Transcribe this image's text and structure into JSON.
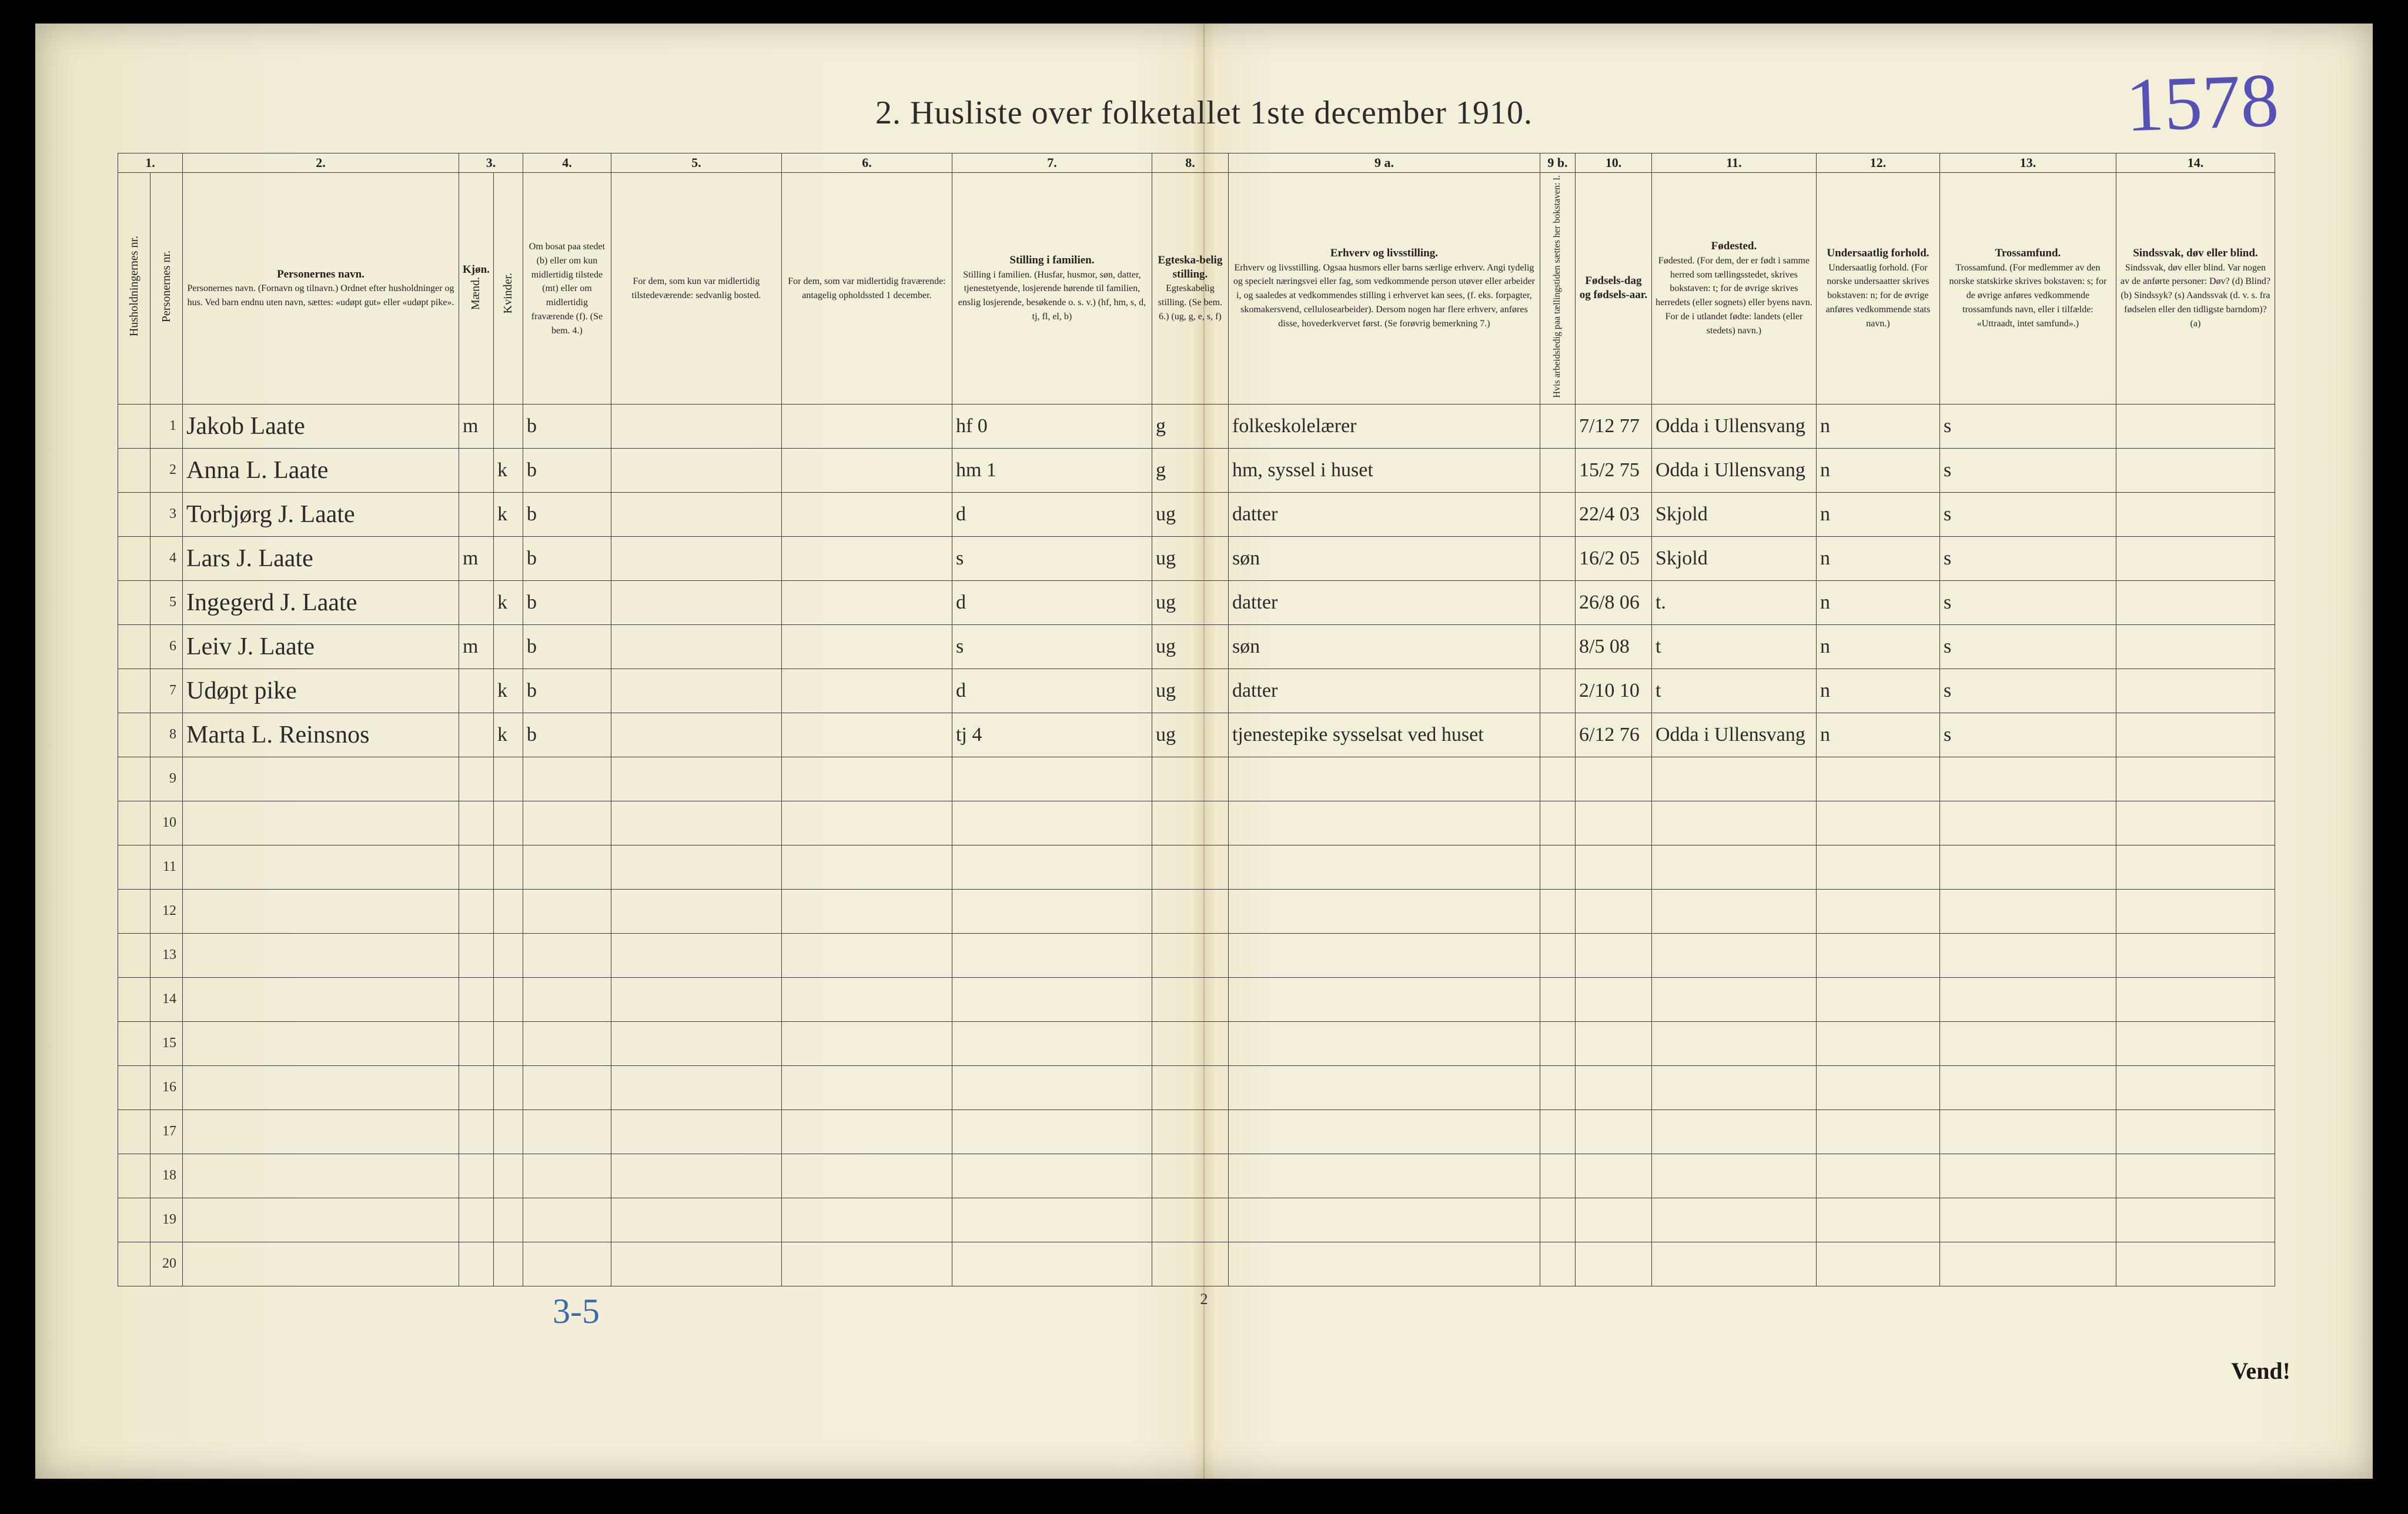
{
  "title": "2.  Husliste over folketallet 1ste december 1910.",
  "handwritten_page_number": "1578",
  "footer_handnote": "3-5",
  "page_footnum": "2",
  "vend": "Vend!",
  "colors": {
    "paper": "#f3eed8",
    "ink": "#2b2b2b",
    "handwriting": "#2a2a2a",
    "blue_pencil": "#3a6aa8",
    "purple_ink": "#3a37b0",
    "rule": "#3a3a3a"
  },
  "column_numbers": [
    "1.",
    "",
    "2.",
    "3.",
    "",
    "4.",
    "5.",
    "6.",
    "7.",
    "8.",
    "9 a.",
    "9 b.",
    "10.",
    "11.",
    "12.",
    "13.",
    "14."
  ],
  "headers": {
    "c1": "Husholdningernes nr.",
    "c1b": "Personernes nr.",
    "c2": "Personernes navn.\n(Fornavn og tilnavn.)\nOrdnet efter husholdninger og hus.\nVed barn endnu uten navn, sættes: «udøpt gut» eller «udøpt pike».",
    "c3": "Kjøn.",
    "c3a": "Mænd.",
    "c3b": "Kvinder.",
    "c4": "Om bosat paa stedet (b) eller om kun midlertidig tilstede (mt) eller om midlertidig fraværende (f).\n(Se bem. 4.)",
    "c5": "For dem, som kun var midlertidig tilstedeværende:\nsedvanlig bosted.",
    "c6": "For dem, som var midlertidig fraværende:\nantagelig opholdssted 1 december.",
    "c7": "Stilling i familien.\n(Husfar, husmor, søn, datter, tjenestetyende, losjerende hørende til familien, enslig losjerende, besøkende o. s. v.)\n(hf, hm, s, d, tj, fl, el, b)",
    "c8": "Egteskabelig stilling.\n(Se bem. 6.)\n(ug, g, e, s, f)",
    "c9a": "Erhverv og livsstilling.\nOgsaa husmors eller barns særlige erhverv.\nAngi tydelig og specielt næringsvei eller fag, som vedkommende person utøver eller arbeider i, og saaledes at vedkommendes stilling i erhvervet kan sees, (f. eks. forpagter, skomakersvend, cellulosearbeider). Dersom nogen har flere erhverv, anføres disse, hovederkvervet først.\n(Se forøvrig bemerkning 7.)",
    "c9b": "Hvis arbeidsledig paa tællingstiden sættes her bokstaven: l.",
    "c10": "Fødsels-dag og fødsels-aar.",
    "c11": "Fødested.\n(For dem, der er født i samme herred som tællingsstedet, skrives bokstaven: t; for de øvrige skrives herredets (eller sognets) eller byens navn. For de i utlandet fødte: landets (eller stedets) navn.)",
    "c12": "Undersaatlig forhold.\n(For norske undersaatter skrives bokstaven: n; for de øvrige anføres vedkommende stats navn.)",
    "c13": "Trossamfund.\n(For medlemmer av den norske statskirke skrives bokstaven: s; for de øvrige anføres vedkommende trossamfunds navn, eller i tilfælde: «Uttraadt, intet samfund».)",
    "c14": "Sindssvak, døv eller blind.\nVar nogen av de anførte personer:\nDøv? (d)\nBlind? (b)\nSindssyk? (s)\nAandssvak (d. v. s. fra fødselen eller den tidligste barndom)? (a)"
  },
  "rows": [
    {
      "n": "1",
      "name": "Jakob Laate",
      "m": "m",
      "k": "",
      "bos": "b",
      "sedv": "",
      "frav": "",
      "stl": "hf          0",
      "egt": "g",
      "erhv": "folkeskolelærer",
      "al": "",
      "fdag": "7/12 77",
      "fsted": "Odda i Ullensvang",
      "und": "n",
      "tro": "s",
      "sind": ""
    },
    {
      "n": "2",
      "name": "Anna L. Laate",
      "m": "",
      "k": "k",
      "bos": "b",
      "sedv": "",
      "frav": "",
      "stl": "hm      1",
      "egt": "g",
      "erhv": "hm, syssel i huset",
      "al": "",
      "fdag": "15/2 75",
      "fsted": "Odda i Ullensvang",
      "und": "n",
      "tro": "s",
      "sind": ""
    },
    {
      "n": "3",
      "name": "Torbjørg J. Laate",
      "m": "",
      "k": "k",
      "bos": "b",
      "sedv": "",
      "frav": "",
      "stl": "d",
      "egt": "ug",
      "erhv": "datter",
      "al": "",
      "fdag": "22/4 03",
      "fsted": "Skjold",
      "und": "n",
      "tro": "s",
      "sind": ""
    },
    {
      "n": "4",
      "name": "Lars J. Laate",
      "m": "m",
      "k": "",
      "bos": "b",
      "sedv": "",
      "frav": "",
      "stl": "s",
      "egt": "ug",
      "erhv": "søn",
      "al": "",
      "fdag": "16/2 05",
      "fsted": "Skjold",
      "und": "n",
      "tro": "s",
      "sind": ""
    },
    {
      "n": "5",
      "name": "Ingegerd J. Laate",
      "m": "",
      "k": "k",
      "bos": "b",
      "sedv": "",
      "frav": "",
      "stl": "d",
      "egt": "ug",
      "erhv": "datter",
      "al": "",
      "fdag": "26/8 06",
      "fsted": "t.",
      "und": "n",
      "tro": "s",
      "sind": ""
    },
    {
      "n": "6",
      "name": "Leiv J. Laate",
      "m": "m",
      "k": "",
      "bos": "b",
      "sedv": "",
      "frav": "",
      "stl": "s",
      "egt": "ug",
      "erhv": "søn",
      "al": "",
      "fdag": "8/5 08",
      "fsted": "t",
      "und": "n",
      "tro": "s",
      "sind": ""
    },
    {
      "n": "7",
      "name": "Udøpt pike",
      "m": "",
      "k": "k",
      "bos": "b",
      "sedv": "",
      "frav": "",
      "stl": "d",
      "egt": "ug",
      "erhv": "datter",
      "al": "",
      "fdag": "2/10 10",
      "fsted": "t",
      "und": "n",
      "tro": "s",
      "sind": ""
    },
    {
      "n": "8",
      "name": "Marta L. Reinsnos",
      "m": "",
      "k": "k",
      "bos": "b",
      "sedv": "",
      "frav": "",
      "stl": "tj        4",
      "egt": "ug",
      "erhv": "tjenestepike sysselsat ved huset",
      "al": "",
      "fdag": "6/12 76",
      "fsted": "Odda i Ullensvang",
      "und": "n",
      "tro": "s",
      "sind": ""
    },
    {
      "n": "9"
    },
    {
      "n": "10"
    },
    {
      "n": "11"
    },
    {
      "n": "12"
    },
    {
      "n": "13"
    },
    {
      "n": "14"
    },
    {
      "n": "15"
    },
    {
      "n": "16"
    },
    {
      "n": "17"
    },
    {
      "n": "18"
    },
    {
      "n": "19"
    },
    {
      "n": "20"
    }
  ]
}
